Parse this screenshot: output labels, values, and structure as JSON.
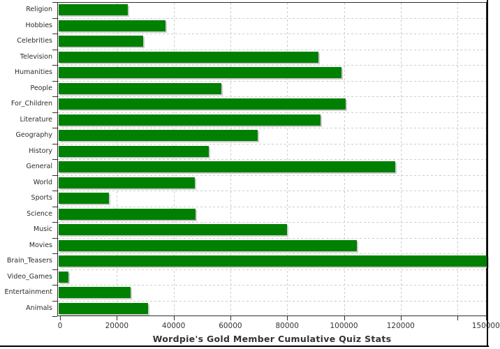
{
  "title": "Wordpie's Gold Member Cumulative Quiz Stats",
  "chart_data": {
    "type": "bar",
    "orientation": "horizontal",
    "title": "Wordpie's Gold Member Cumulative Quiz Stats",
    "xlabel": "",
    "ylabel": "",
    "xlim": [
      0,
      151000
    ],
    "grid": "dashed",
    "legend": "none",
    "categories": [
      "Religion",
      "Hobbies",
      "Celebrities",
      "Television",
      "Humanities",
      "People",
      "For_Children",
      "Literature",
      "Geography",
      "History",
      "General",
      "World",
      "Sports",
      "Science",
      "Music",
      "Movies",
      "Brain_Teasers",
      "Video_Games",
      "Entertainment",
      "Animals"
    ],
    "values": [
      23900,
      37200,
      29300,
      91000,
      99100,
      56800,
      100600,
      91800,
      69600,
      52400,
      118100,
      47500,
      17300,
      47700,
      80000,
      104600,
      150500,
      3000,
      24900,
      31000
    ],
    "x_ticks": [
      0,
      20000,
      40000,
      60000,
      80000,
      100000,
      120000,
      140000,
      150000
    ],
    "x_tick_labels": [
      "0",
      "20000",
      "40000",
      "60000",
      "80000",
      "100000",
      "120000",
      "",
      "150000"
    ],
    "colors": {
      "bar": "#008000",
      "bar_shadow": "#cccccc",
      "grid": "#cccccc",
      "axis": "#2e2e2e",
      "text": "#333333",
      "frame": "#000000"
    }
  }
}
